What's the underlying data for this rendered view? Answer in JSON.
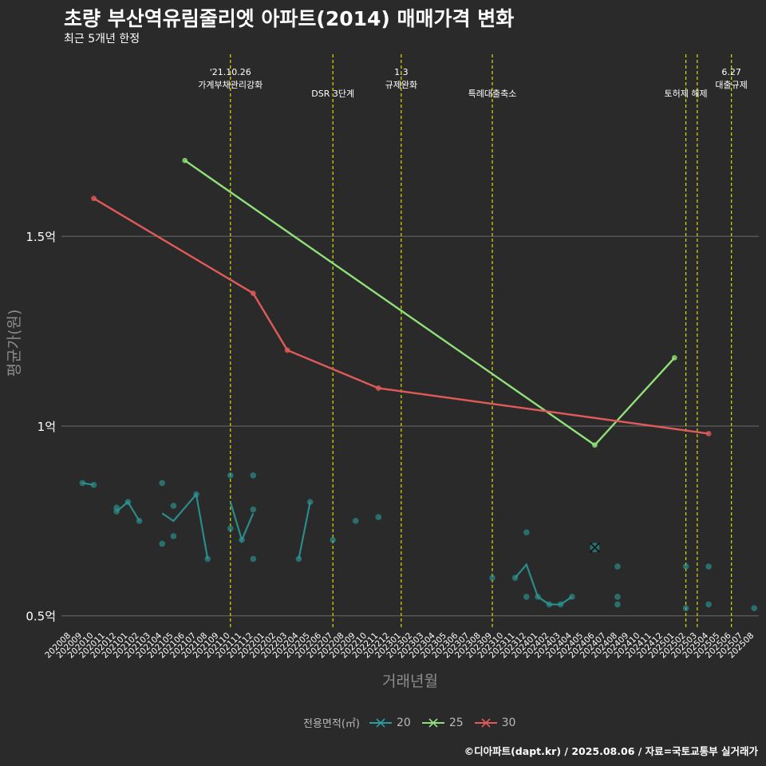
{
  "header": {
    "title": "초량 부산역유림줄리엣 아파트(2014) 매매가격 변화",
    "subtitle": "최근 5개년 한정"
  },
  "caption": "©디아파트(dapt.kr) / 2025.08.06 / 자료=국토교통부 실거래가",
  "legend": {
    "title": "전용면적(㎡)",
    "items": [
      {
        "label": "20",
        "color": "#2a9d9a"
      },
      {
        "label": "25",
        "color": "#90e07a"
      },
      {
        "label": "30",
        "color": "#e05a5a"
      }
    ]
  },
  "chart_data": {
    "type": "line",
    "xlabel": "거래년월",
    "ylabel": "평균가(원)",
    "ylim": [
      0.47,
      1.98
    ],
    "y_ticks": [
      {
        "value": 0.5,
        "label": "0.5억"
      },
      {
        "value": 1.0,
        "label": "1억"
      },
      {
        "value": 1.5,
        "label": "1.5억"
      }
    ],
    "categories": [
      "202008",
      "202009",
      "202010",
      "202011",
      "202012",
      "202101",
      "202102",
      "202103",
      "202104",
      "202105",
      "202106",
      "202107",
      "202108",
      "202109",
      "202110",
      "202111",
      "202112",
      "202201",
      "202202",
      "202203",
      "202204",
      "202205",
      "202206",
      "202207",
      "202208",
      "202209",
      "202210",
      "202211",
      "202212",
      "202301",
      "202302",
      "202303",
      "202304",
      "202305",
      "202306",
      "202307",
      "202308",
      "202309",
      "202310",
      "202311",
      "202312",
      "202401",
      "202402",
      "202403",
      "202404",
      "202405",
      "202406",
      "202407",
      "202408",
      "202409",
      "202410",
      "202411",
      "202412",
      "202501",
      "202502",
      "202503",
      "202504",
      "202505",
      "202506",
      "202507",
      "202508"
    ],
    "events": [
      {
        "x": "202110",
        "label": "'21.10.26\n가계부채관리강화",
        "color": "#d4e000"
      },
      {
        "x": "202207",
        "label": "DSR 3단계",
        "color": "#d4e000"
      },
      {
        "x": "202301",
        "label": "1.3\n규제완화",
        "color": "#d4e000"
      },
      {
        "x": "202309",
        "label": "특례대출축소",
        "color": "#d4e000"
      },
      {
        "x": "202502",
        "label": "토허제 해제",
        "color": "#d4e000"
      },
      {
        "x": "202503",
        "label": "",
        "color": "#d4e000"
      },
      {
        "x": "202506",
        "label": "6.27\n대출규제",
        "color": "#d4e000"
      }
    ],
    "series": [
      {
        "name": "20",
        "color": "#2a9d9a",
        "line_segments": [
          [
            [
              "202009",
              0.85
            ],
            [
              "202010",
              0.845
            ]
          ],
          [
            [
              "202012",
              0.775
            ],
            [
              "202101",
              0.8
            ],
            [
              "202102",
              0.75
            ]
          ],
          [
            [
              "202104",
              0.77
            ],
            [
              "202105",
              0.75
            ],
            [
              "202107",
              0.82
            ],
            [
              "202108",
              0.65
            ]
          ],
          [
            [
              "202110",
              0.8
            ],
            [
              "202111",
              0.7
            ],
            [
              "202112",
              0.77
            ]
          ],
          [
            [
              "202204",
              0.65
            ],
            [
              "202205",
              0.8
            ]
          ],
          [
            [
              "202311",
              0.6
            ],
            [
              "202312",
              0.635
            ],
            [
              "202401",
              0.55
            ],
            [
              "202402",
              0.53
            ],
            [
              "202403",
              0.53
            ],
            [
              "202404",
              0.55
            ]
          ]
        ],
        "points": [
          [
            "202009",
            0.85
          ],
          [
            "202010",
            0.845
          ],
          [
            "202012",
            0.785
          ],
          [
            "202012",
            0.775
          ],
          [
            "202101",
            0.8
          ],
          [
            "202102",
            0.75
          ],
          [
            "202104",
            0.85
          ],
          [
            "202104",
            0.69
          ],
          [
            "202105",
            0.79
          ],
          [
            "202105",
            0.71
          ],
          [
            "202107",
            0.82
          ],
          [
            "202108",
            0.65
          ],
          [
            "202110",
            0.87
          ],
          [
            "202110",
            0.73
          ],
          [
            "202111",
            0.7
          ],
          [
            "202112",
            0.87
          ],
          [
            "202112",
            0.78
          ],
          [
            "202112",
            0.65
          ],
          [
            "202204",
            0.65
          ],
          [
            "202205",
            0.8
          ],
          [
            "202207",
            0.7
          ],
          [
            "202209",
            0.75
          ],
          [
            "202211",
            0.76
          ],
          [
            "202309",
            0.6
          ],
          [
            "202311",
            0.6
          ],
          [
            "202312",
            0.72
          ],
          [
            "202312",
            0.55
          ],
          [
            "202401",
            0.55
          ],
          [
            "202402",
            0.53
          ],
          [
            "202403",
            0.53
          ],
          [
            "202404",
            0.55
          ],
          [
            "202408",
            0.63
          ],
          [
            "202408",
            0.55
          ],
          [
            "202408",
            0.53
          ],
          [
            "202502",
            0.63
          ],
          [
            "202502",
            0.52
          ],
          [
            "202504",
            0.63
          ],
          [
            "202504",
            0.53
          ],
          [
            "202508",
            0.52
          ]
        ],
        "highlight": [
          "202406",
          0.68
        ]
      },
      {
        "name": "25",
        "color": "#90e07a",
        "line_segments": [
          [
            [
              "202106",
              1.7
            ],
            [
              "202406",
              0.95
            ],
            [
              "202501",
              1.18
            ]
          ]
        ],
        "points": [
          [
            "202106",
            1.7
          ],
          [
            "202406",
            0.95
          ],
          [
            "202501",
            1.18
          ]
        ]
      },
      {
        "name": "30",
        "color": "#e05a5a",
        "line_segments": [
          [
            [
              "202010",
              1.6
            ],
            [
              "202112",
              1.35
            ],
            [
              "202203",
              1.2
            ],
            [
              "202211",
              1.1
            ],
            [
              "202504",
              0.98
            ]
          ]
        ],
        "points": [
          [
            "202010",
            1.6
          ],
          [
            "202112",
            1.35
          ],
          [
            "202203",
            1.2
          ],
          [
            "202211",
            1.1
          ],
          [
            "202504",
            0.98
          ]
        ]
      }
    ]
  }
}
